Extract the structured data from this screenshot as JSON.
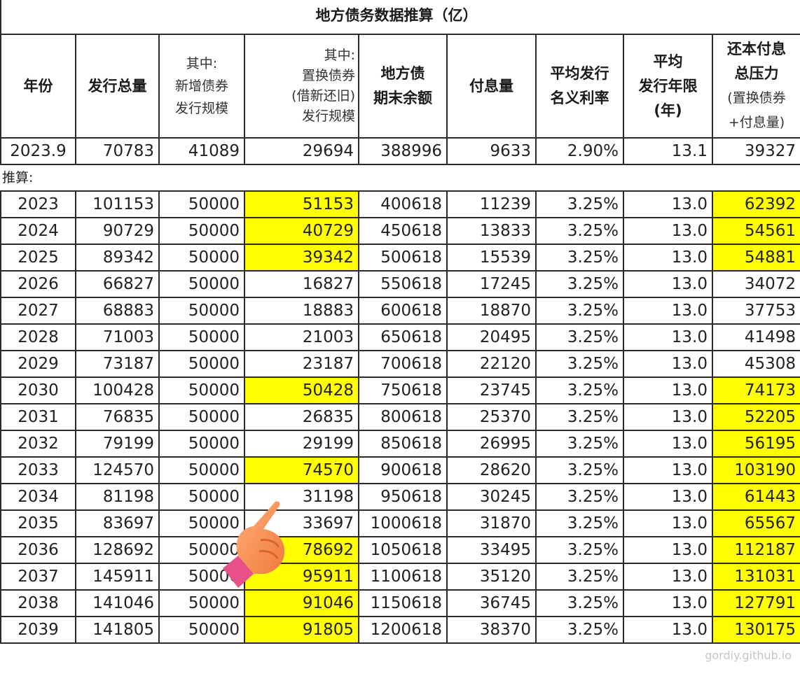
{
  "title": "地方债务数据推算（亿）",
  "headers": {
    "year": "年份",
    "total_issue": "发行总量",
    "new_line1": "其中:",
    "new_line2": "新增债券",
    "new_line3": "发行规模",
    "repl_line1": "其中:",
    "repl_line2": "置换债券",
    "repl_line3": "(借新还旧)",
    "repl_line4": "发行规模",
    "balance_line1": "地方债",
    "balance_line2": "期末余额",
    "interest": "付息量",
    "rate_line1": "平均发行",
    "rate_line2": "名义利率",
    "term_line1": "平均",
    "term_line2": "发行年限",
    "term_line3": "(年)",
    "pressure_line1": "还本付息",
    "pressure_line2": "总压力",
    "pressure_line3": "(置换债券",
    "pressure_line4": "+付息量)"
  },
  "base_row": {
    "year": "2023.9",
    "total_issue": "70783",
    "new_issue": "41089",
    "replacement": "29694",
    "balance": "388996",
    "interest": "9633",
    "rate": "2.90%",
    "term": "13.1",
    "pressure": "39327"
  },
  "section_label": "推算:",
  "rows": [
    {
      "year": "2023",
      "total_issue": "101153",
      "new_issue": "50000",
      "replacement": "51153",
      "balance": "400618",
      "interest": "11239",
      "rate": "3.25%",
      "term": "13.0",
      "pressure": "62392",
      "hl_replacement": true,
      "hl_pressure": true
    },
    {
      "year": "2024",
      "total_issue": "90729",
      "new_issue": "50000",
      "replacement": "40729",
      "balance": "450618",
      "interest": "13833",
      "rate": "3.25%",
      "term": "13.0",
      "pressure": "54561",
      "hl_replacement": true,
      "hl_pressure": true
    },
    {
      "year": "2025",
      "total_issue": "89342",
      "new_issue": "50000",
      "replacement": "39342",
      "balance": "500618",
      "interest": "15539",
      "rate": "3.25%",
      "term": "13.0",
      "pressure": "54881",
      "hl_replacement": true,
      "hl_pressure": true
    },
    {
      "year": "2026",
      "total_issue": "66827",
      "new_issue": "50000",
      "replacement": "16827",
      "balance": "550618",
      "interest": "17245",
      "rate": "3.25%",
      "term": "13.0",
      "pressure": "34072",
      "hl_replacement": false,
      "hl_pressure": false
    },
    {
      "year": "2027",
      "total_issue": "68883",
      "new_issue": "50000",
      "replacement": "18883",
      "balance": "600618",
      "interest": "18870",
      "rate": "3.25%",
      "term": "13.0",
      "pressure": "37753",
      "hl_replacement": false,
      "hl_pressure": false
    },
    {
      "year": "2028",
      "total_issue": "71003",
      "new_issue": "50000",
      "replacement": "21003",
      "balance": "650618",
      "interest": "20495",
      "rate": "3.25%",
      "term": "13.0",
      "pressure": "41498",
      "hl_replacement": false,
      "hl_pressure": false
    },
    {
      "year": "2029",
      "total_issue": "73187",
      "new_issue": "50000",
      "replacement": "23187",
      "balance": "700618",
      "interest": "22120",
      "rate": "3.25%",
      "term": "13.0",
      "pressure": "45308",
      "hl_replacement": false,
      "hl_pressure": false
    },
    {
      "year": "2030",
      "total_issue": "100428",
      "new_issue": "50000",
      "replacement": "50428",
      "balance": "750618",
      "interest": "23745",
      "rate": "3.25%",
      "term": "13.0",
      "pressure": "74173",
      "hl_replacement": true,
      "hl_pressure": true
    },
    {
      "year": "2031",
      "total_issue": "76835",
      "new_issue": "50000",
      "replacement": "26835",
      "balance": "800618",
      "interest": "25370",
      "rate": "3.25%",
      "term": "13.0",
      "pressure": "52205",
      "hl_replacement": false,
      "hl_pressure": true
    },
    {
      "year": "2032",
      "total_issue": "79199",
      "new_issue": "50000",
      "replacement": "29199",
      "balance": "850618",
      "interest": "26995",
      "rate": "3.25%",
      "term": "13.0",
      "pressure": "56195",
      "hl_replacement": false,
      "hl_pressure": true
    },
    {
      "year": "2033",
      "total_issue": "124570",
      "new_issue": "50000",
      "replacement": "74570",
      "balance": "900618",
      "interest": "28620",
      "rate": "3.25%",
      "term": "13.0",
      "pressure": "103190",
      "hl_replacement": true,
      "hl_pressure": true
    },
    {
      "year": "2034",
      "total_issue": "81198",
      "new_issue": "50000",
      "replacement": "31198",
      "balance": "950618",
      "interest": "30245",
      "rate": "3.25%",
      "term": "13.0",
      "pressure": "61443",
      "hl_replacement": false,
      "hl_pressure": true
    },
    {
      "year": "2035",
      "total_issue": "83697",
      "new_issue": "50000",
      "replacement": "33697",
      "balance": "1000618",
      "interest": "31870",
      "rate": "3.25%",
      "term": "13.0",
      "pressure": "65567",
      "hl_replacement": false,
      "hl_pressure": true
    },
    {
      "year": "2036",
      "total_issue": "128692",
      "new_issue": "50000",
      "replacement": "78692",
      "balance": "1050618",
      "interest": "33495",
      "rate": "3.25%",
      "term": "13.0",
      "pressure": "112187",
      "hl_replacement": true,
      "hl_pressure": true
    },
    {
      "year": "2037",
      "total_issue": "145911",
      "new_issue": "50000",
      "replacement": "95911",
      "balance": "1100618",
      "interest": "35120",
      "rate": "3.25%",
      "term": "13.0",
      "pressure": "131031",
      "hl_replacement": true,
      "hl_pressure": true
    },
    {
      "year": "2038",
      "total_issue": "141046",
      "new_issue": "50000",
      "replacement": "91046",
      "balance": "1150618",
      "interest": "36745",
      "rate": "3.25%",
      "term": "13.0",
      "pressure": "127791",
      "hl_replacement": true,
      "hl_pressure": true
    },
    {
      "year": "2039",
      "total_issue": "141805",
      "new_issue": "50000",
      "replacement": "91805",
      "balance": "1200618",
      "interest": "38370",
      "rate": "3.25%",
      "term": "13.0",
      "pressure": "130175",
      "hl_replacement": true,
      "hl_pressure": true
    }
  ],
  "colors": {
    "highlight": "#ffff00",
    "border": "#2b2b2b"
  },
  "cursor_icon": "pointing-hand-icon",
  "watermark": "gordiy.github.io"
}
